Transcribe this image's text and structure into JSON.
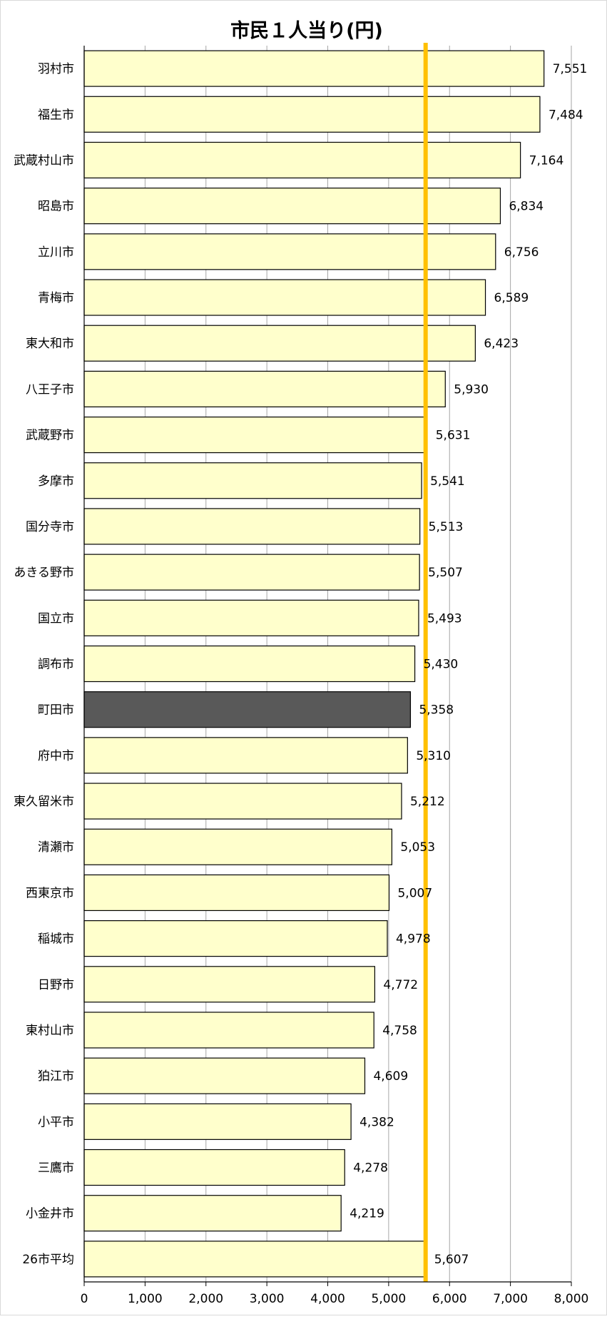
{
  "chart_data": {
    "type": "bar",
    "orientation": "horizontal",
    "title": "市民１人当り(円)",
    "categories": [
      "羽村市",
      "福生市",
      "武蔵村山市",
      "昭島市",
      "立川市",
      "青梅市",
      "東大和市",
      "八王子市",
      "武蔵野市",
      "多摩市",
      "国分寺市",
      "あきる野市",
      "国立市",
      "調布市",
      "町田市",
      "府中市",
      "東久留米市",
      "清瀬市",
      "西東京市",
      "稲城市",
      "日野市",
      "東村山市",
      "狛江市",
      "小平市",
      "三鷹市",
      "小金井市",
      "26市平均"
    ],
    "values": [
      7551,
      7484,
      7164,
      6834,
      6756,
      6589,
      6423,
      5930,
      5631,
      5541,
      5513,
      5507,
      5493,
      5430,
      5358,
      5310,
      5212,
      5053,
      5007,
      4978,
      4772,
      4758,
      4609,
      4382,
      4278,
      4219,
      5607
    ],
    "value_labels": [
      "7,551",
      "7,484",
      "7,164",
      "6,834",
      "6,756",
      "6,589",
      "6,423",
      "5,930",
      "5,631",
      "5,541",
      "5,513",
      "5,507",
      "5,493",
      "5,430",
      "5,358",
      "5,310",
      "5,212",
      "5,053",
      "5,007",
      "4,978",
      "4,772",
      "4,758",
      "4,609",
      "4,382",
      "4,278",
      "4,219",
      "5,607"
    ],
    "highlight_category": "町田市",
    "reference_line": {
      "value": 5607,
      "color": "#ffc000"
    },
    "xlim": [
      0,
      8000
    ],
    "xticks": [
      0,
      1000,
      2000,
      3000,
      4000,
      5000,
      6000,
      7000,
      8000
    ],
    "xtick_labels": [
      "0",
      "1,000",
      "2,000",
      "3,000",
      "4,000",
      "5,000",
      "6,000",
      "7,000",
      "8,000"
    ],
    "grid": "vertical",
    "colors": {
      "bar_fill": "#ffffcc",
      "highlight_fill": "#595959",
      "bar_stroke": "#000000",
      "grid": "#a6a6a6"
    }
  }
}
